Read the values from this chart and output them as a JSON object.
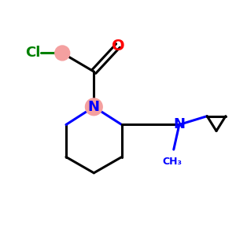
{
  "background_color": "#ffffff",
  "pink": "#F4A0A0",
  "black": "#000000",
  "blue": "#0000FF",
  "green": "#008000",
  "red": "#FF0000",
  "lw": 2.2,
  "lw_thin": 1.8,
  "figsize": [
    3.0,
    3.0
  ],
  "dpi": 100,
  "xlim": [
    -2.5,
    3.8
  ],
  "ylim": [
    -1.6,
    2.8
  ]
}
